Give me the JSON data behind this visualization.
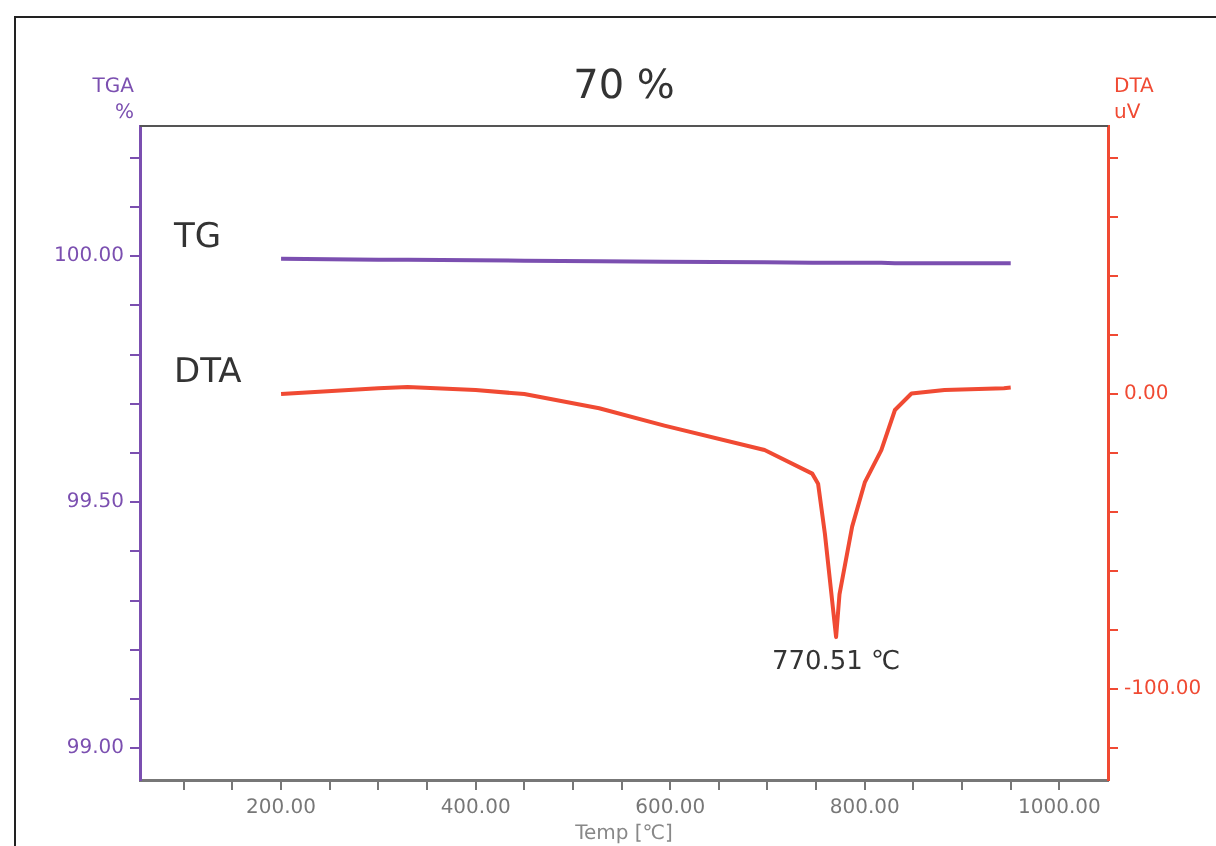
{
  "chart_data": {
    "type": "line",
    "title": "70 %",
    "xlabel": "Temp [℃]",
    "ylabel": "TGA %",
    "y2label": "DTA uV",
    "x": [
      200,
      300,
      330,
      400,
      450,
      527,
      594,
      697,
      746,
      752,
      759,
      770.51,
      774,
      787,
      800,
      817,
      831,
      848,
      882,
      943,
      950
    ],
    "series": [
      {
        "name": "TG",
        "color": "#7b4fb0",
        "values": [
          99.995,
          99.993,
          99.993,
          99.992,
          99.991,
          99.99,
          99.989,
          99.988,
          99.987,
          99.987,
          99.987,
          99.987,
          99.987,
          99.987,
          99.987,
          99.987,
          99.986,
          99.986,
          99.986,
          99.986,
          99.986
        ]
      },
      {
        "name": "DTA",
        "color": "#f04a33",
        "axis": "y2",
        "values": [
          0,
          2,
          2.4,
          1.4,
          0,
          -4.8,
          -10.7,
          -19,
          -27,
          -30.4,
          -47.4,
          -82.5,
          -68,
          -45,
          -30,
          -19,
          -5.4,
          0.2,
          1.4,
          2,
          2.2
        ]
      }
    ],
    "xlim": [
      55,
      1050
    ],
    "xticks": [
      {
        "value": 100,
        "label": null
      },
      {
        "value": 150,
        "label": null
      },
      {
        "value": 200,
        "label": "200.00"
      },
      {
        "value": 250,
        "label": null
      },
      {
        "value": 300,
        "label": null
      },
      {
        "value": 350,
        "label": null
      },
      {
        "value": 400,
        "label": "400.00"
      },
      {
        "value": 450,
        "label": null
      },
      {
        "value": 500,
        "label": null
      },
      {
        "value": 550,
        "label": null
      },
      {
        "value": 600,
        "label": "600.00"
      },
      {
        "value": 650,
        "label": null
      },
      {
        "value": 700,
        "label": null
      },
      {
        "value": 750,
        "label": null
      },
      {
        "value": 800,
        "label": "800.00"
      },
      {
        "value": 850,
        "label": null
      },
      {
        "value": 900,
        "label": null
      },
      {
        "value": 950,
        "label": null
      },
      {
        "value": 1000,
        "label": "1000.00"
      }
    ],
    "ylim": [
      98.935,
      100.265
    ],
    "yticks": [
      {
        "value": 99,
        "label": "99.00"
      },
      {
        "value": 99.1,
        "label": null
      },
      {
        "value": 99.2,
        "label": null
      },
      {
        "value": 99.3,
        "label": null
      },
      {
        "value": 99.4,
        "label": null
      },
      {
        "value": 99.5,
        "label": "99.50"
      },
      {
        "value": 99.6,
        "label": null
      },
      {
        "value": 99.7,
        "label": null
      },
      {
        "value": 99.8,
        "label": null
      },
      {
        "value": 99.9,
        "label": null
      },
      {
        "value": 100,
        "label": "100.00"
      },
      {
        "value": 100.1,
        "label": null
      },
      {
        "value": 100.2,
        "label": null
      }
    ],
    "y2lim": [
      -131,
      91
    ],
    "y2ticks": [
      {
        "value": -120,
        "label": null
      },
      {
        "value": -100,
        "label": "-100.00"
      },
      {
        "value": -80,
        "label": null
      },
      {
        "value": -60,
        "label": null
      },
      {
        "value": -40,
        "label": null
      },
      {
        "value": -20,
        "label": null
      },
      {
        "value": 0,
        "label": "0.00"
      },
      {
        "value": 20,
        "label": null
      },
      {
        "value": 40,
        "label": null
      },
      {
        "value": 60,
        "label": null
      },
      {
        "value": 80,
        "label": null
      }
    ],
    "annotations": [
      "770.51 ℃"
    ],
    "legend": false,
    "grid": false,
    "marker": "none",
    "line_style": "solid"
  }
}
